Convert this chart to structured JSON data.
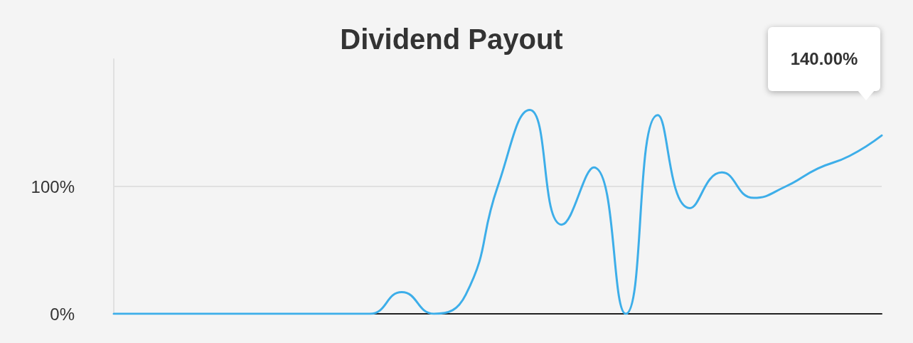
{
  "chart_data": {
    "type": "line",
    "title": "Dividend Payout",
    "categories": [
      null,
      null,
      null,
      null,
      null,
      null,
      null,
      null,
      null,
      null,
      null,
      null,
      null,
      null,
      null,
      null,
      null,
      null,
      null,
      null,
      null,
      null,
      null,
      null,
      null
    ],
    "series": [
      {
        "color": "#3daee9",
        "values": [
          0,
          0,
          0,
          0,
          0,
          0,
          0,
          0,
          0,
          17,
          0,
          15,
          100,
          160,
          70,
          115,
          0,
          156,
          83,
          111,
          91,
          100,
          114,
          124,
          140
        ]
      }
    ],
    "ylim": [
      0,
      200
    ],
    "yticks": [
      {
        "value": 0,
        "label": "0%"
      },
      {
        "value": 100,
        "label": "100%"
      }
    ],
    "grid": "y",
    "marker": "none",
    "line_style": "solid",
    "annotations": [
      "140.00%"
    ]
  }
}
